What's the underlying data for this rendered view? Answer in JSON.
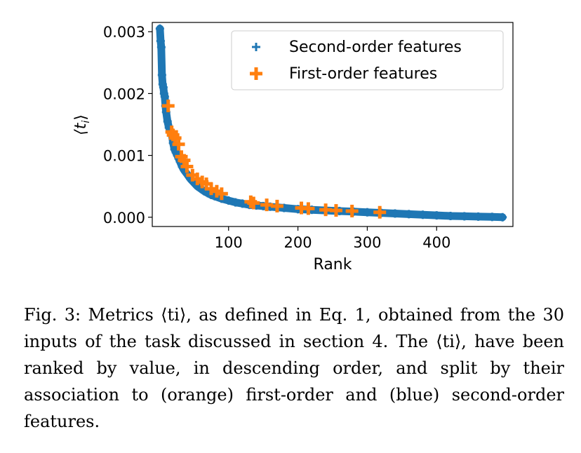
{
  "chart_data": {
    "type": "scatter",
    "xlabel": "Rank",
    "ylabel": "⟨t",
    "ylabel_sub": "i",
    "ylabel_close": "⟩",
    "xlim": [
      -10,
      510
    ],
    "ylim": [
      -0.00015,
      0.00315
    ],
    "x_ticks": [
      100,
      200,
      300,
      400
    ],
    "x_tick_labels": [
      "100",
      "200",
      "300",
      "400"
    ],
    "y_ticks": [
      0.0,
      0.001,
      0.002,
      0.003
    ],
    "y_tick_labels": [
      "0.000",
      "0.001",
      "0.002",
      "0.003"
    ],
    "grid": false,
    "legend_position": "upper-right",
    "series": [
      {
        "name": "Second-order features",
        "color": "#1f77b4",
        "marker": "plus-small",
        "x": [
          1,
          2,
          3,
          4,
          5,
          6,
          7,
          8,
          9,
          10,
          12,
          14,
          16,
          18,
          20,
          22,
          24,
          26,
          28,
          30,
          33,
          36,
          40,
          45,
          50,
          55,
          60,
          65,
          70,
          75,
          80,
          90,
          100,
          110,
          120,
          130,
          140,
          150,
          160,
          180,
          200,
          220,
          240,
          260,
          280,
          300,
          320,
          340,
          360,
          380,
          400,
          420,
          440,
          460,
          480,
          495
        ],
        "y": [
          0.00305,
          0.00285,
          0.00275,
          0.0023,
          0.00215,
          0.0021,
          0.002,
          0.00195,
          0.0018,
          0.0017,
          0.00155,
          0.00145,
          0.0014,
          0.00135,
          0.0012,
          0.0011,
          0.00105,
          0.001,
          0.00095,
          0.0009,
          0.00082,
          0.00076,
          0.0007,
          0.00062,
          0.00056,
          0.0005,
          0.00046,
          0.00042,
          0.00039,
          0.00036,
          0.00034,
          0.0003,
          0.00027,
          0.00024,
          0.00022,
          0.0002,
          0.00019,
          0.00018,
          0.00017,
          0.00015,
          0.00013,
          0.00012,
          0.00011,
          0.0001,
          9e-05,
          8e-05,
          7e-05,
          6e-05,
          5e-05,
          4e-05,
          3e-05,
          2e-05,
          1.5e-05,
          1e-05,
          5e-06,
          0.0
        ]
      },
      {
        "name": "First-order features",
        "color": "#ff7f0e",
        "marker": "plus-large",
        "x": [
          13,
          18,
          20,
          23,
          28,
          32,
          36,
          40,
          48,
          55,
          62,
          68,
          75,
          83,
          90,
          132,
          136,
          155,
          170,
          205,
          215,
          240,
          255,
          278,
          318
        ],
        "y": [
          0.0018,
          0.00138,
          0.00133,
          0.00128,
          0.00118,
          0.00098,
          0.00092,
          0.00082,
          0.00068,
          0.00062,
          0.00057,
          0.00054,
          0.00046,
          0.00042,
          0.00038,
          0.00025,
          0.00023,
          0.0002,
          0.00018,
          0.00015,
          0.00014,
          0.00012,
          0.00011,
          0.0001,
          8e-05
        ]
      }
    ]
  },
  "caption": {
    "text": "Fig. 3: Metrics ⟨ti⟩, as defined in Eq. 1, obtained from the 30 inputs of the task discussed in section 4. The ⟨ti⟩, have been ranked by value, in descending order, and split by their association to (orange) first-order and (blue) second-order features."
  }
}
